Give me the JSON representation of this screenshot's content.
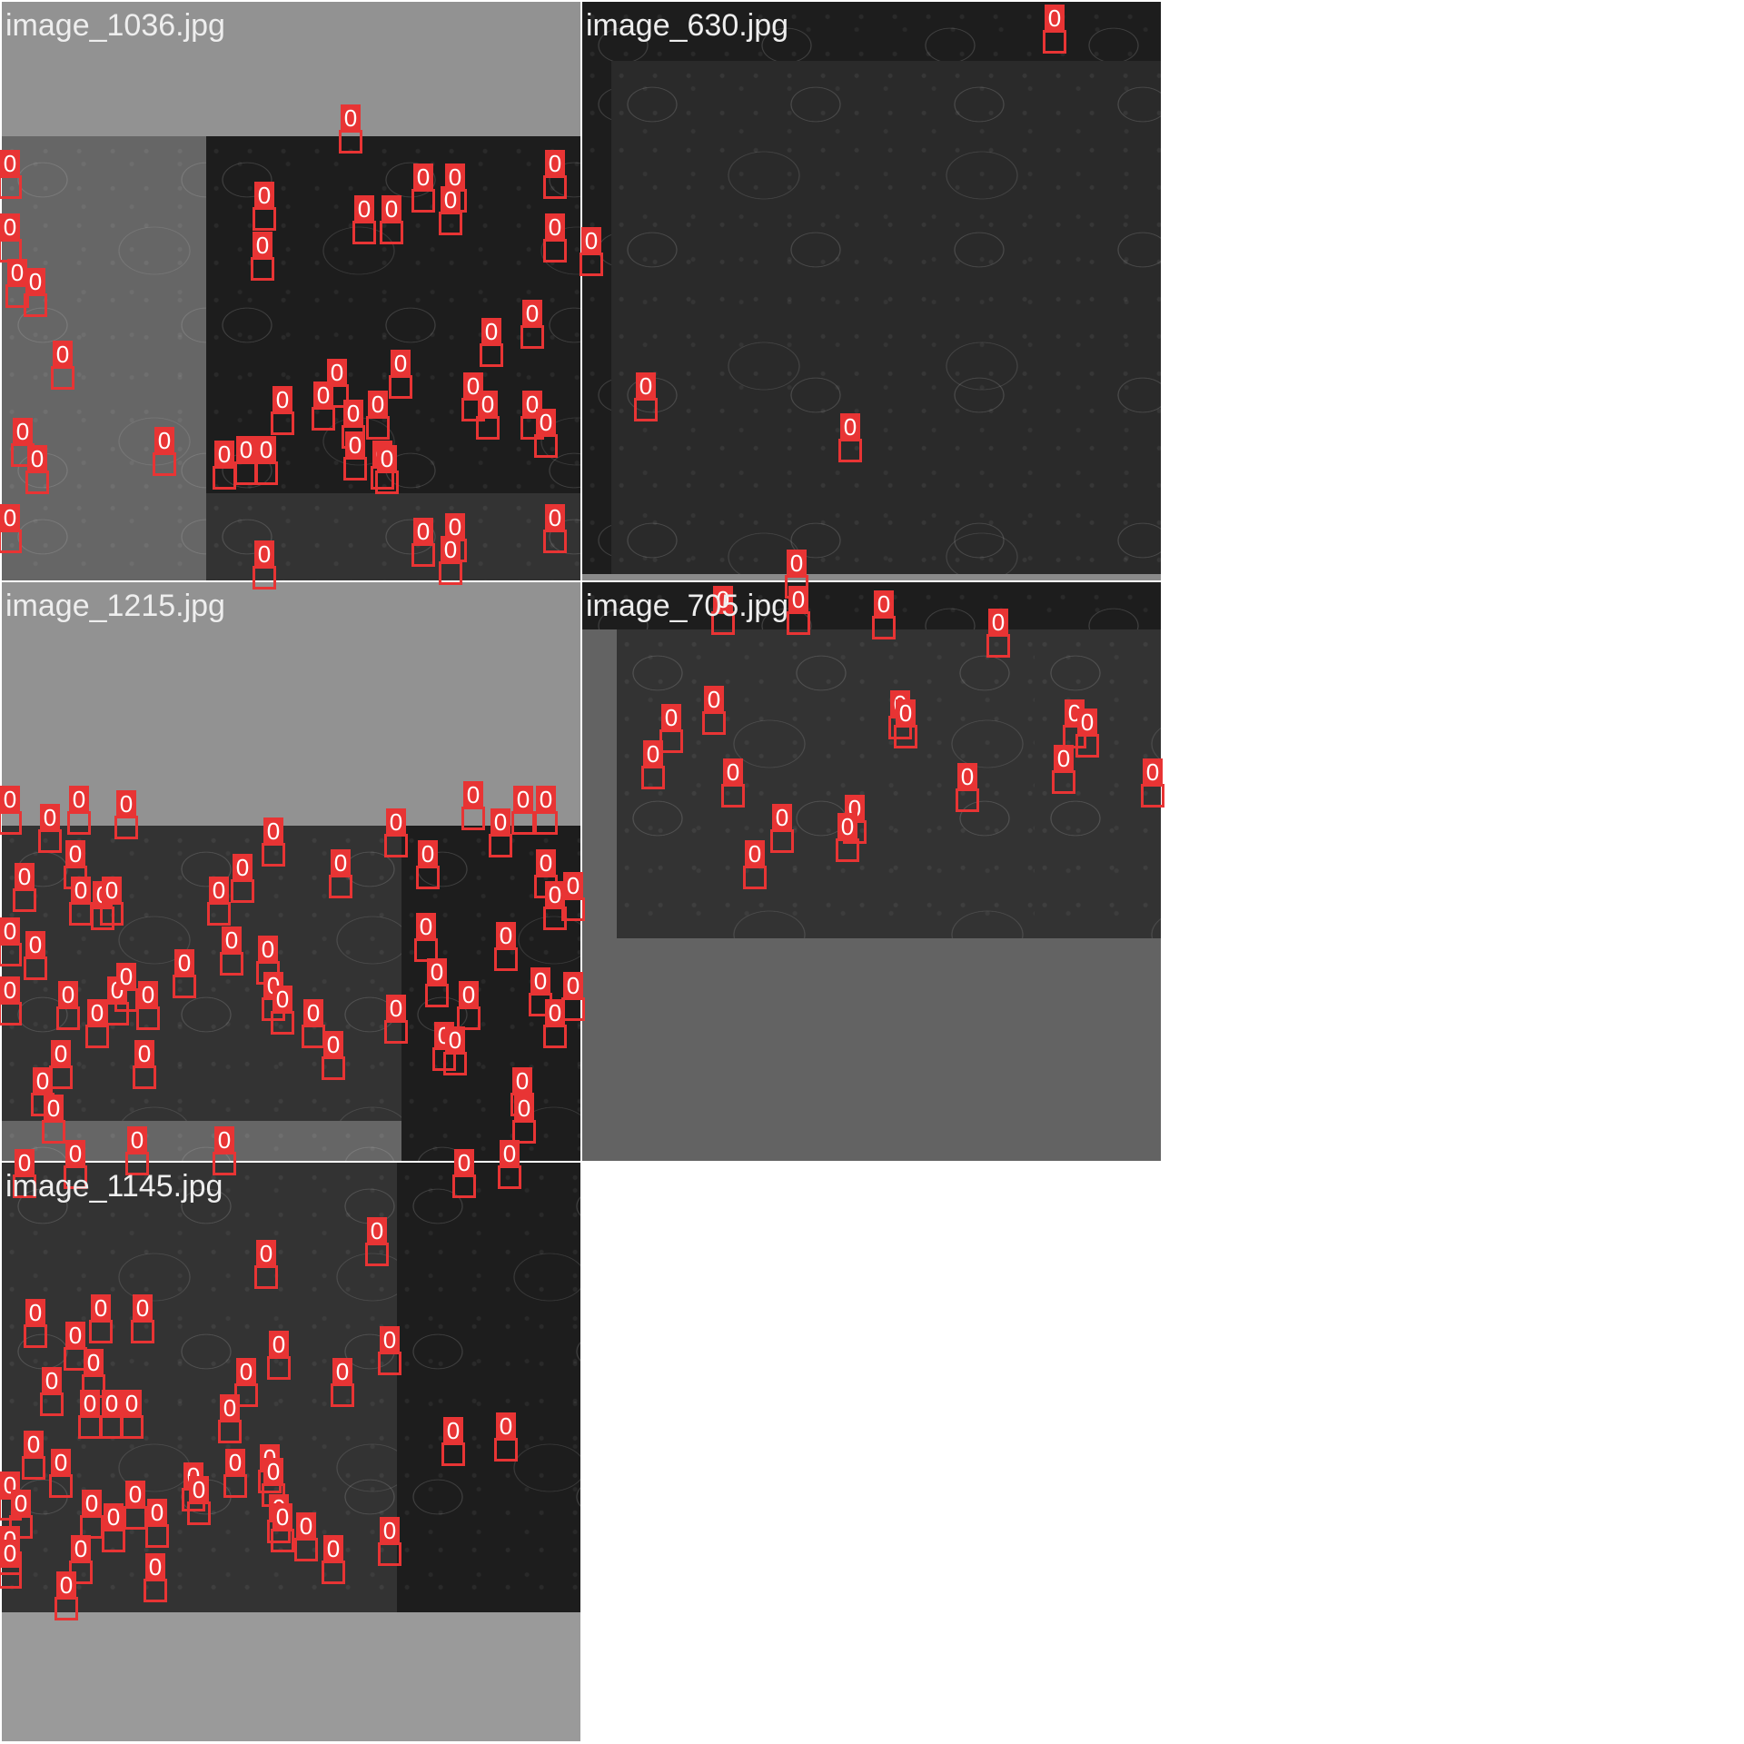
{
  "colors": {
    "box": "#e83434",
    "label_text": "#ffffff",
    "tile_title": "#eeeeee",
    "padding": "#929292"
  },
  "tiles": [
    {
      "title": "image_1036.jpg"
    },
    {
      "title": "image_630.jpg"
    },
    {
      "title": "image_1215.jpg"
    },
    {
      "title": "image_705.jpg"
    },
    {
      "title": "image_1145.jpg"
    }
  ],
  "detection_label": "0"
}
